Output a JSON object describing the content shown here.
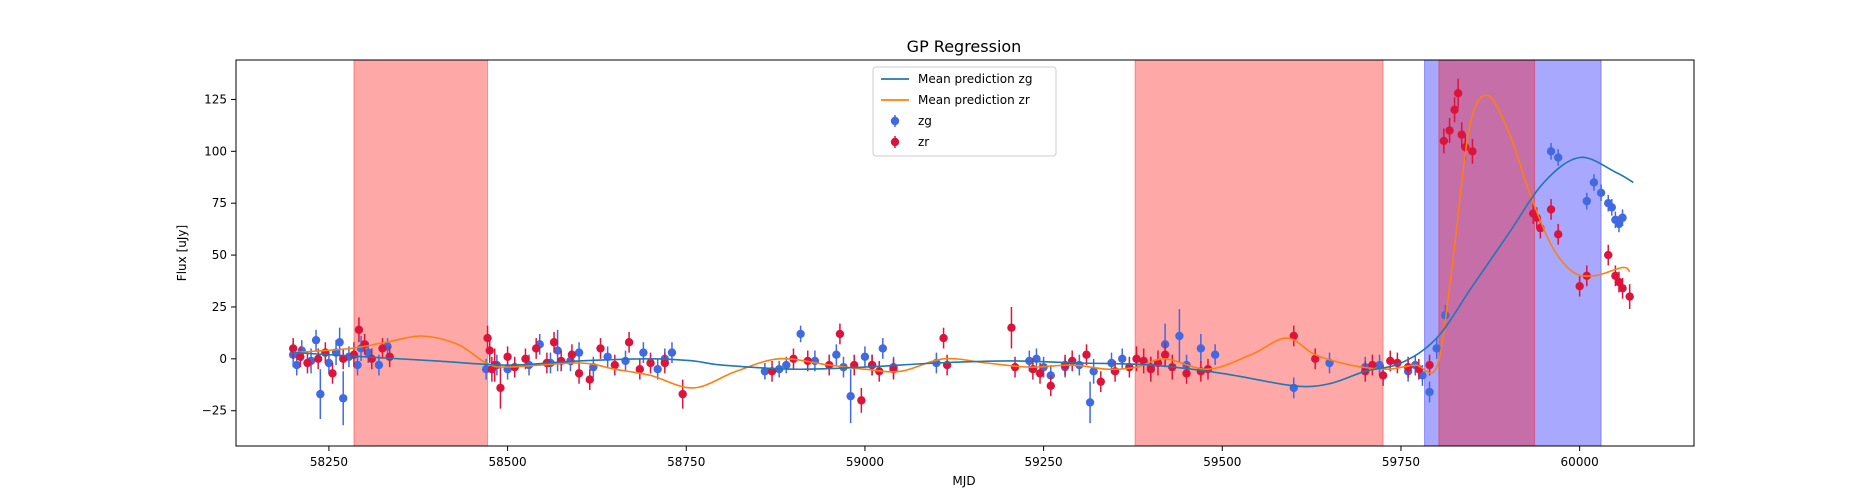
{
  "chart_data": {
    "type": "scatter",
    "title": "GP Regression",
    "xlabel": "MJD",
    "ylabel": "Flux [uJy]",
    "xlim": [
      58120,
      60160
    ],
    "ylim": [
      -42,
      144
    ],
    "xticks": [
      58250,
      58500,
      58750,
      59000,
      59250,
      59500,
      59750,
      60000
    ],
    "yticks": [
      -25,
      0,
      25,
      50,
      75,
      100,
      125
    ],
    "grid": false,
    "legend_position": "top-center",
    "colors": {
      "zg_line": "#1f77b4",
      "zr_line": "#ff7f0e",
      "zg_points": "#4169e1",
      "zr_points": "#dc143c",
      "red_band": "#ff0000",
      "blue_band": "#0000ff"
    },
    "shaded_regions": [
      {
        "color": "red",
        "x": [
          58285,
          58472
        ]
      },
      {
        "color": "red",
        "x": [
          59378,
          59725
        ]
      },
      {
        "color": "blue",
        "x": [
          59783,
          60030
        ]
      },
      {
        "color": "red",
        "x": [
          59803,
          59937
        ]
      }
    ],
    "legend": [
      {
        "label": "Mean prediction zg",
        "kind": "line",
        "series": "zg"
      },
      {
        "label": "Mean prediction zr",
        "kind": "line",
        "series": "zr"
      },
      {
        "label": "zg",
        "kind": "marker",
        "series": "zg"
      },
      {
        "label": "zr",
        "kind": "marker",
        "series": "zr"
      }
    ],
    "series": [
      {
        "name": "Mean prediction zg",
        "kind": "line",
        "x": [
          58200,
          58300,
          58400,
          58500,
          58600,
          58700,
          58760,
          58800,
          58900,
          59000,
          59100,
          59200,
          59300,
          59400,
          59500,
          59600,
          59650,
          59700,
          59750,
          59800,
          59850,
          59900,
          59950,
          60000,
          60050,
          60075
        ],
        "y": [
          3,
          1,
          -1,
          -3,
          -1,
          0,
          -1,
          -3,
          -5,
          -4,
          -2,
          -1,
          -2,
          -3,
          -7,
          -13,
          -12,
          -6,
          -2,
          10,
          35,
          60,
          85,
          97,
          90,
          85
        ]
      },
      {
        "name": "Mean prediction zr",
        "kind": "line",
        "x": [
          58200,
          58280,
          58330,
          58380,
          58430,
          58470,
          58500,
          58600,
          58650,
          58700,
          58760,
          58820,
          58880,
          58950,
          59000,
          59050,
          59110,
          59170,
          59230,
          59290,
          59340,
          59380,
          59420,
          59480,
          59540,
          59590,
          59630,
          59680,
          59730,
          59770,
          59800,
          59820,
          59845,
          59870,
          59900,
          59930,
          59960,
          59990,
          60020,
          60060,
          60070
        ],
        "y": [
          3,
          5,
          8,
          11,
          7,
          -2,
          -4,
          -2,
          -5,
          -8,
          -14,
          -6,
          0,
          -3,
          -5,
          -6,
          0,
          -2,
          -4,
          -3,
          -5,
          -4,
          0,
          -5,
          2,
          10,
          2,
          -3,
          -5,
          -3,
          -4,
          40,
          110,
          127,
          110,
          80,
          55,
          42,
          40,
          44,
          42
        ]
      },
      {
        "name": "zg",
        "kind": "scatter",
        "x": [
          58200,
          58205,
          58212,
          58225,
          58232,
          58238,
          58250,
          58260,
          58265,
          58270,
          58278,
          58290,
          58295,
          58305,
          58320,
          58332,
          58470,
          58485,
          58500,
          58530,
          58545,
          58560,
          58570,
          58588,
          58600,
          58620,
          58640,
          58665,
          58690,
          58710,
          58720,
          58730,
          58860,
          58880,
          58890,
          58910,
          58930,
          58960,
          58970,
          58980,
          59000,
          59010,
          59025,
          59040,
          59100,
          59230,
          59240,
          59250,
          59260,
          59280,
          59300,
          59315,
          59320,
          59345,
          59360,
          59400,
          59420,
          59440,
          59450,
          59470,
          59490,
          59600,
          59650,
          59700,
          59720,
          59760,
          59770,
          59780,
          59790,
          59800,
          59812,
          59960,
          59970,
          60010,
          60020,
          60030,
          60040,
          60045,
          60050,
          60055,
          60060
        ],
        "y": [
          2,
          -3,
          4,
          -1,
          9,
          -17,
          -2,
          3,
          8,
          -19,
          1,
          -3,
          5,
          3,
          -3,
          6,
          -5,
          -3,
          -5,
          -3,
          7,
          -2,
          4,
          -1,
          3,
          -4,
          1,
          -1,
          3,
          -5,
          0,
          3,
          -6,
          -5,
          -3,
          12,
          -1,
          2,
          -4,
          -18,
          1,
          -3,
          5,
          -4,
          -2,
          -1,
          0,
          -4,
          -8,
          -4,
          -3,
          -21,
          -6,
          -2,
          0,
          -4,
          7,
          11,
          -3,
          5,
          2,
          -14,
          -2,
          -4,
          -3,
          -6,
          -3,
          -8,
          -16,
          5,
          21,
          100,
          97,
          76,
          85,
          80,
          75,
          73,
          67,
          65,
          68
        ],
        "yerr": [
          6,
          5,
          5,
          6,
          5,
          12,
          5,
          6,
          7,
          13,
          5,
          5,
          6,
          5,
          5,
          4,
          5,
          5,
          5,
          5,
          5,
          5,
          10,
          5,
          5,
          5,
          5,
          5,
          5,
          5,
          5,
          5,
          4,
          4,
          4,
          4,
          5,
          5,
          5,
          13,
          5,
          5,
          5,
          5,
          5,
          5,
          5,
          5,
          5,
          5,
          5,
          10,
          6,
          5,
          5,
          5,
          10,
          13,
          5,
          7,
          5,
          5,
          5,
          5,
          5,
          5,
          5,
          5,
          5,
          5,
          5,
          4,
          4,
          4,
          4,
          4,
          4,
          4,
          4,
          4,
          4
        ]
      },
      {
        "name": "zr",
        "kind": "scatter",
        "x": [
          58200,
          58210,
          58220,
          58235,
          58245,
          58255,
          58270,
          58285,
          58292,
          58300,
          58310,
          58325,
          58335,
          58472,
          58475,
          58478,
          58482,
          58490,
          58500,
          58510,
          58525,
          58540,
          58555,
          58565,
          58575,
          58590,
          58600,
          58615,
          58630,
          58650,
          58670,
          58685,
          58700,
          58720,
          58745,
          58870,
          58900,
          58920,
          58950,
          58965,
          58985,
          58995,
          59010,
          59020,
          59040,
          59110,
          59115,
          59205,
          59210,
          59235,
          59245,
          59260,
          59280,
          59290,
          59310,
          59330,
          59350,
          59370,
          59380,
          59390,
          59400,
          59410,
          59420,
          59430,
          59450,
          59470,
          59480,
          59600,
          59630,
          59700,
          59710,
          59725,
          59735,
          59745,
          59760,
          59775,
          59790,
          59810,
          59818,
          59825,
          59830,
          59835,
          59840,
          59850,
          59935,
          59940,
          59945,
          59960,
          59970,
          60000,
          60010,
          60040,
          60050,
          60055,
          60060,
          60070
        ],
        "y": [
          5,
          1,
          -2,
          0,
          3,
          -7,
          0,
          2,
          14,
          7,
          0,
          5,
          1,
          10,
          4,
          -5,
          -3,
          -14,
          1,
          -4,
          0,
          5,
          -2,
          8,
          -1,
          2,
          -7,
          -10,
          5,
          -3,
          8,
          -5,
          -2,
          -2,
          -17,
          -6,
          0,
          -1,
          -3,
          12,
          -3,
          -20,
          -3,
          -6,
          -5,
          10,
          -3,
          15,
          -4,
          -5,
          -7,
          -13,
          -3,
          -1,
          2,
          -11,
          -6,
          -4,
          0,
          -1,
          -5,
          -2,
          2,
          -4,
          -7,
          -6,
          -5,
          11,
          0,
          -6,
          -3,
          -8,
          -1,
          -2,
          -4,
          -5,
          -3,
          105,
          110,
          120,
          128,
          108,
          102,
          100,
          70,
          68,
          63,
          72,
          60,
          35,
          40,
          50,
          40,
          37,
          34,
          30
        ],
        "yerr": [
          5,
          5,
          5,
          5,
          5,
          5,
          5,
          6,
          6,
          5,
          5,
          5,
          5,
          6,
          6,
          6,
          8,
          10,
          5,
          5,
          5,
          5,
          5,
          5,
          5,
          5,
          5,
          5,
          5,
          5,
          5,
          5,
          5,
          5,
          7,
          5,
          5,
          5,
          5,
          5,
          5,
          6,
          5,
          5,
          5,
          5,
          5,
          10,
          5,
          5,
          5,
          5,
          5,
          5,
          5,
          5,
          5,
          5,
          6,
          6,
          6,
          6,
          6,
          6,
          5,
          5,
          5,
          5,
          5,
          5,
          5,
          5,
          5,
          5,
          5,
          5,
          5,
          6,
          6,
          6,
          7,
          6,
          6,
          6,
          5,
          5,
          5,
          5,
          5,
          5,
          5,
          5,
          5,
          5,
          5,
          6
        ]
      }
    ]
  }
}
